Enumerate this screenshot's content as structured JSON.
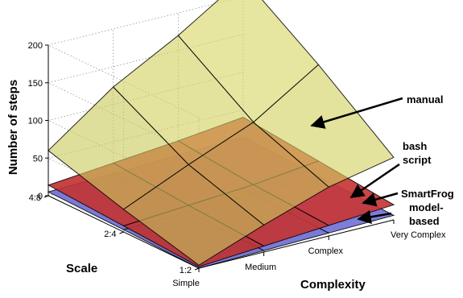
{
  "chart_data": {
    "type": "surface3d",
    "title": "",
    "xlabel": "Complexity",
    "ylabel": "Scale",
    "zlabel": "Number of steps",
    "x": [
      "Simple",
      "Medium",
      "Complex",
      "Very Complex"
    ],
    "y": [
      "1:2",
      "2:4",
      "4:8"
    ],
    "zlim": [
      0,
      200
    ],
    "zticks": [
      0,
      50,
      100,
      150,
      200
    ],
    "grid": true,
    "series": [
      {
        "name": "SmartFrog model-based",
        "color": "#7b7be8",
        "values": [
          [
            0,
            2,
            4,
            6
          ],
          [
            3,
            5,
            7,
            10
          ],
          [
            5,
            8,
            11,
            14
          ]
        ]
      },
      {
        "name": "bash script",
        "color": "#d63a3a",
        "values": [
          [
            2,
            8,
            14,
            20
          ],
          [
            8,
            14,
            20,
            30
          ],
          [
            14,
            22,
            30,
            40
          ]
        ]
      },
      {
        "name": "manual",
        "color": "#e2e26a",
        "values": [
          [
            4,
            36,
            65,
            83
          ],
          [
            30,
            68,
            103,
            158
          ],
          [
            60,
            123,
            170,
            225
          ]
        ]
      }
    ],
    "annotations": [
      {
        "lines": [
          "manual"
        ],
        "target": "manual"
      },
      {
        "lines": [
          "bash",
          "script"
        ],
        "target": "bash script"
      },
      {
        "lines": [
          "SmartFrog",
          "model-",
          "based"
        ],
        "target": "SmartFrog model-based"
      }
    ]
  }
}
